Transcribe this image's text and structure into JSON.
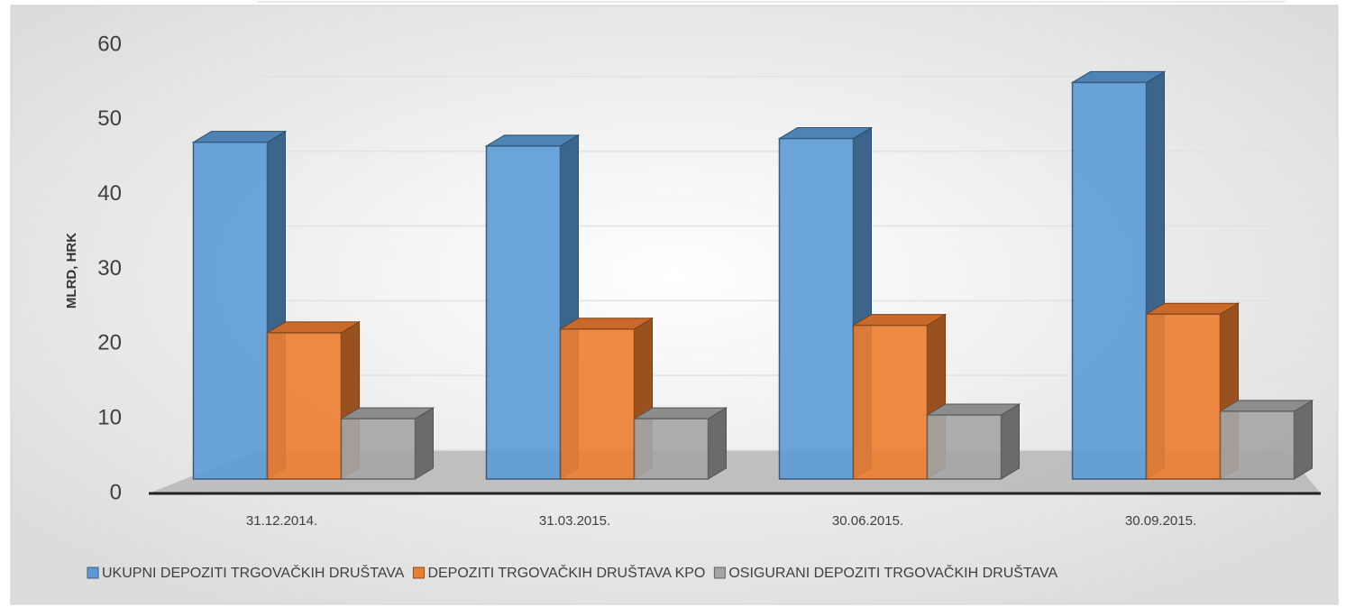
{
  "chart_data": {
    "type": "bar3d",
    "y_label": "MLRD, HRK",
    "categories": [
      "31.12.2014.",
      "31.03.2015.",
      "30.06.2015.",
      "30.09.2015."
    ],
    "series": [
      {
        "name": "UKUPNI DEPOZITI TRGOVAČKIH DRUŠTAVA",
        "color": "#5b9bd5",
        "values": [
          47,
          46.5,
          47.5,
          55
        ]
      },
      {
        "name": "DEPOZITI TRGOVAČKIH DRUŠTAVA KPO",
        "color": "#ed7d31",
        "values": [
          21.5,
          22,
          22.5,
          24
        ]
      },
      {
        "name": "OSIGURANI DEPOZITI TRGOVAČKIH DRUŠTAVA",
        "color": "#a5a5a5",
        "values": [
          10,
          10,
          10.5,
          11
        ]
      }
    ],
    "ylim": [
      0,
      60
    ],
    "yticks": [
      0,
      10,
      20,
      30,
      40,
      50,
      60
    ],
    "grid": true,
    "legend": "bottom"
  }
}
